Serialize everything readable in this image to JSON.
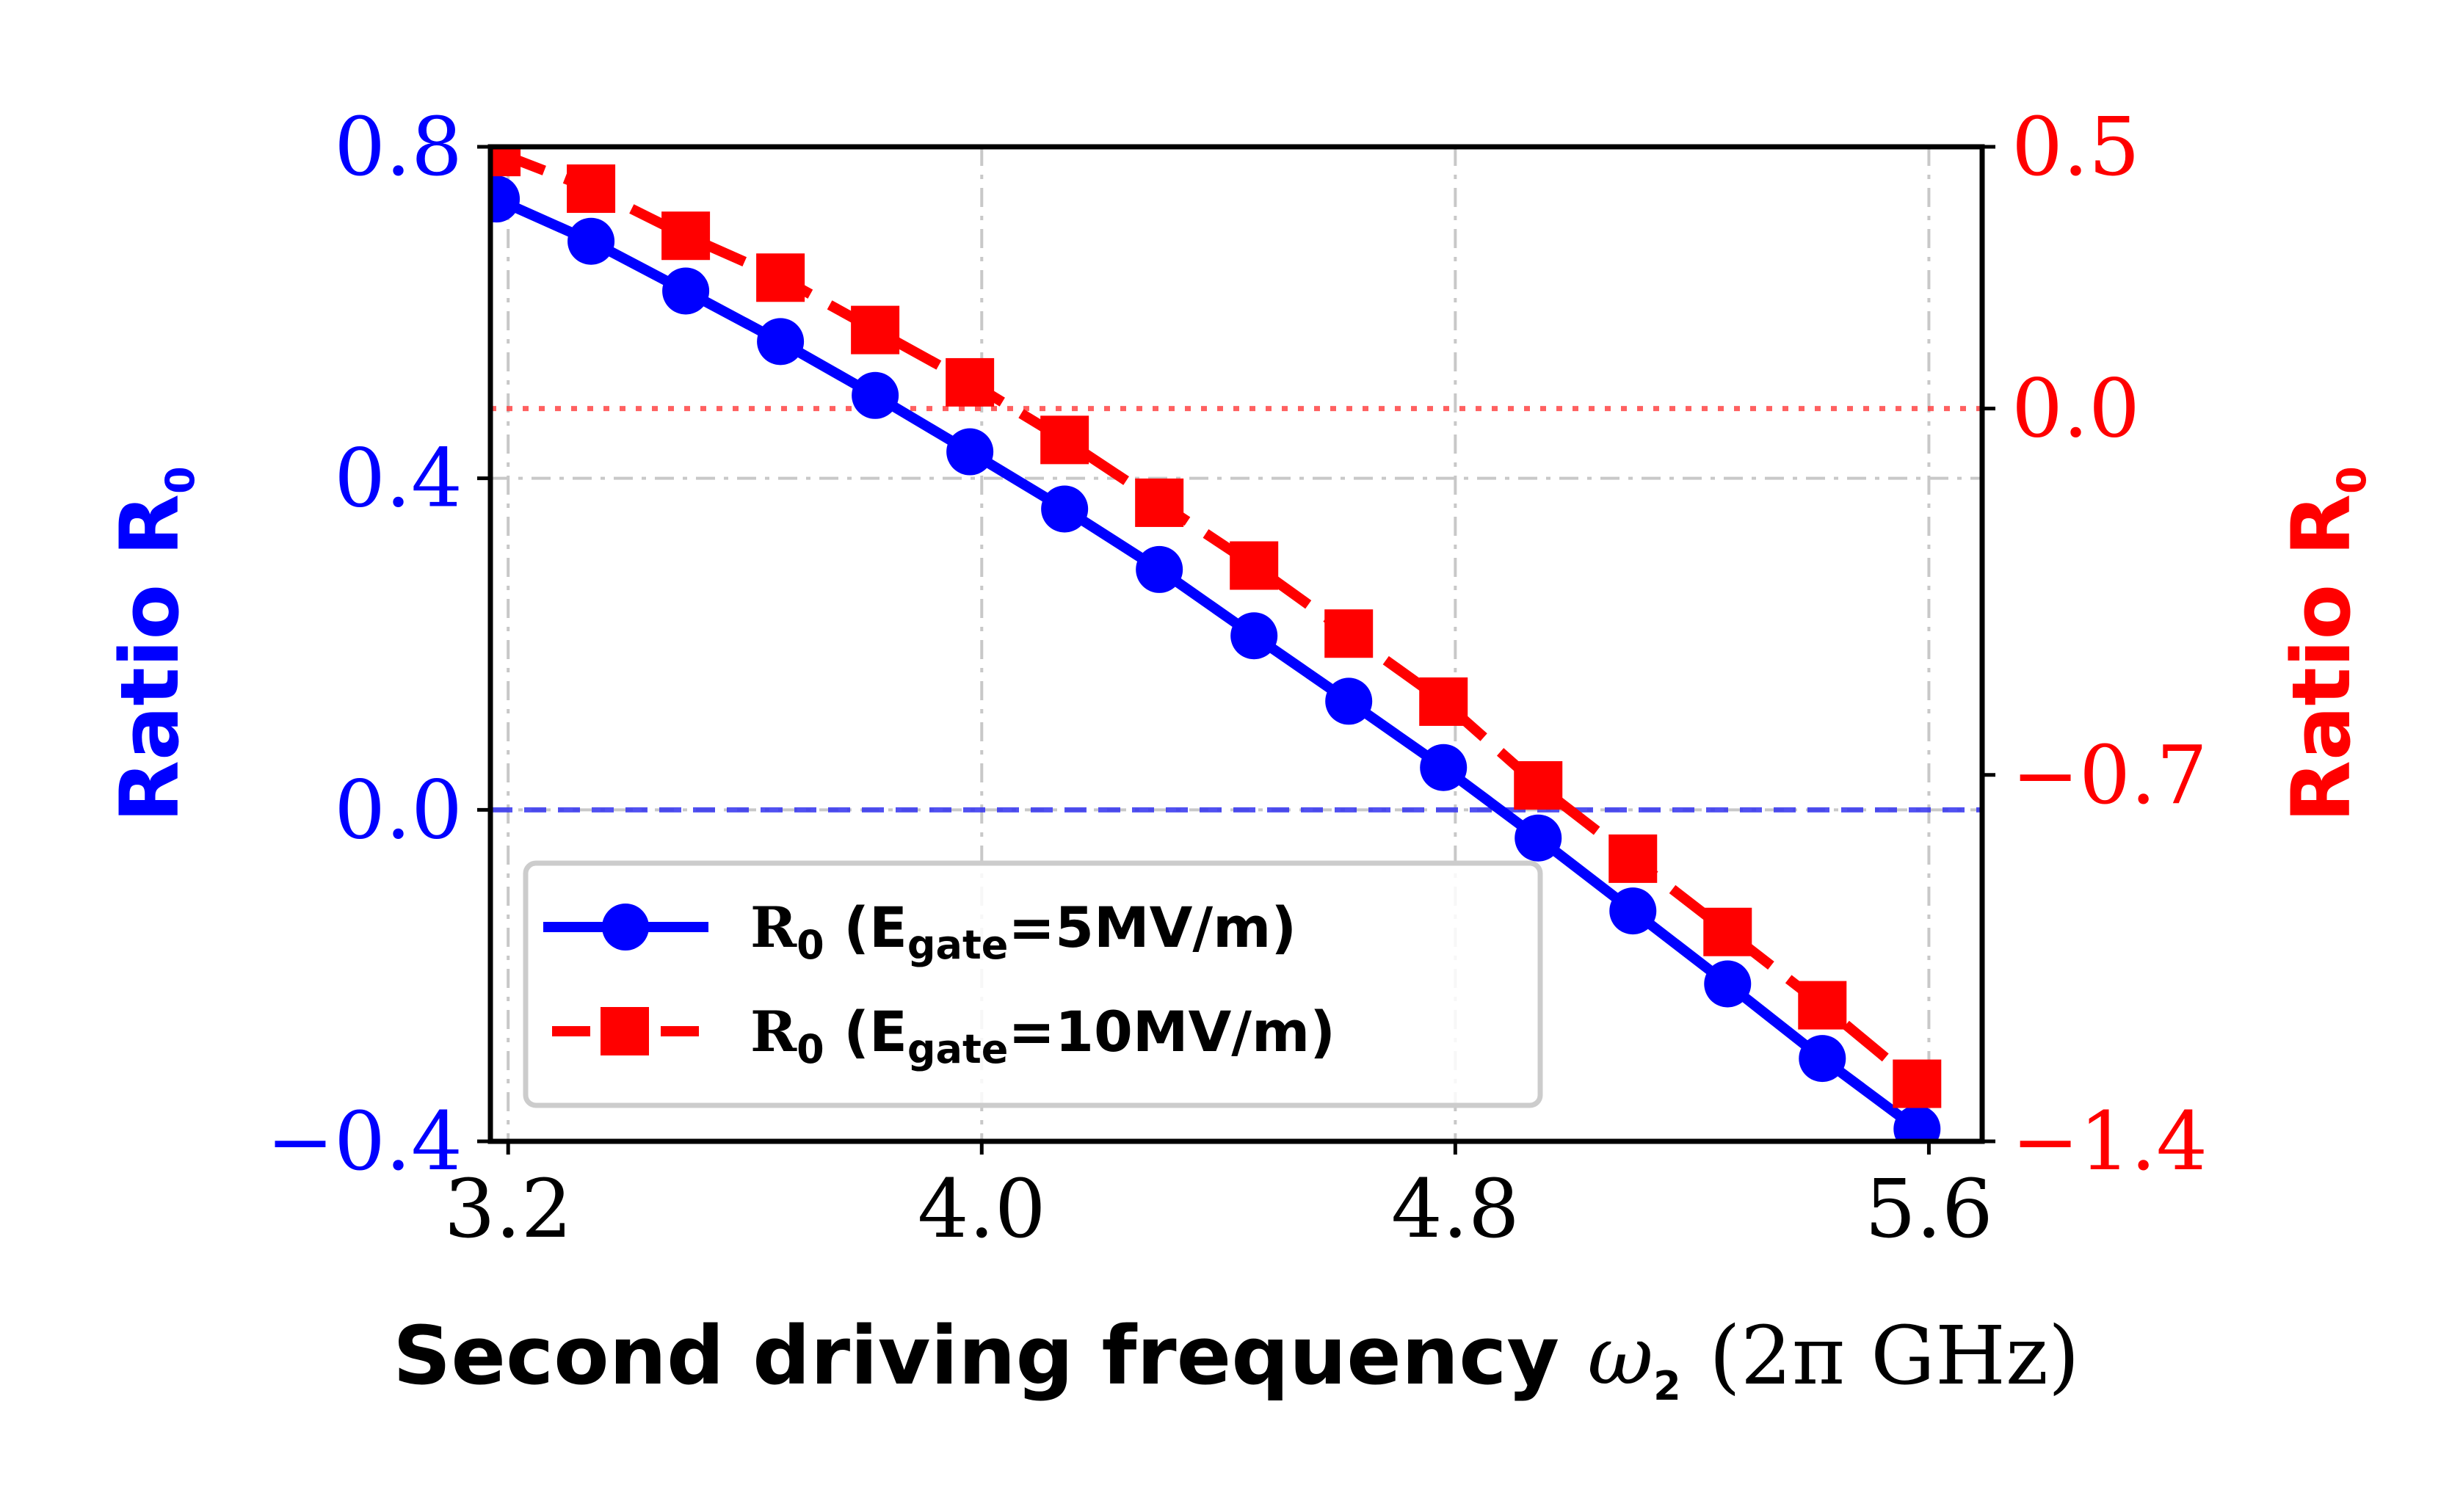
{
  "chart_data": {
    "type": "line",
    "x_label_text": "Second driving frequency",
    "x_label_symbol": "ω",
    "x_label_subscript": "2",
    "x_label_unit": "(2π GHz)",
    "x_lim": [
      3.17,
      5.69
    ],
    "x_ticks": [
      3.2,
      4.0,
      4.8,
      5.6
    ],
    "x_tick_labels": [
      "3.2",
      "4.0",
      "4.8",
      "5.6"
    ],
    "left_axis": {
      "label": "Ratio R",
      "label_subscript": "0",
      "color": "#0000ff",
      "lim": [
        -0.4,
        0.8
      ],
      "ticks": [
        -0.4,
        0.0,
        0.4,
        0.8
      ],
      "tick_labels": [
        "−0.4",
        "0.0",
        "0.4",
        "0.8"
      ]
    },
    "right_axis": {
      "label": "Ratio R",
      "label_subscript": "0",
      "color": "#ff0000",
      "lim": [
        -1.4,
        0.5
      ],
      "ticks": [
        -1.4,
        -0.7,
        0.0,
        0.5
      ],
      "tick_labels": [
        "−1.4",
        "−0.7",
        "0.0",
        "0.5"
      ]
    },
    "reference_lines": [
      {
        "axis": "left",
        "y": 0.0,
        "style": "dashed",
        "color": "#3333ee"
      },
      {
        "axis": "right",
        "y": 0.0,
        "style": "dotted",
        "color": "#ff4444"
      }
    ],
    "series": [
      {
        "name": "R0 (Egate=5MV/m)",
        "legend_main": "R",
        "legend_sub": "0",
        "legend_paren": "(E",
        "legend_sub2": "gate",
        "legend_tail": "=5MV/m)",
        "axis": "left",
        "color": "#0000ff",
        "marker": "circle",
        "line": "solid",
        "x": [
          3.18,
          3.34,
          3.5,
          3.66,
          3.82,
          3.98,
          4.14,
          4.3,
          4.46,
          4.62,
          4.78,
          4.94,
          5.1,
          5.26,
          5.42,
          5.58
        ],
        "y": [
          0.737,
          0.686,
          0.626,
          0.565,
          0.5,
          0.432,
          0.363,
          0.29,
          0.21,
          0.131,
          0.051,
          -0.034,
          -0.122,
          -0.21,
          -0.3,
          -0.385
        ]
      },
      {
        "name": "R0 (Egate=10MV/m)",
        "legend_main": "R",
        "legend_sub": "0",
        "legend_paren": "(E",
        "legend_sub2": "gate",
        "legend_tail": "=10MV/m)",
        "axis": "right",
        "color": "#ff0000",
        "marker": "square",
        "line": "dashed",
        "x": [
          3.18,
          3.34,
          3.5,
          3.66,
          3.82,
          3.98,
          4.14,
          4.3,
          4.46,
          4.62,
          4.78,
          4.94,
          5.1,
          5.26,
          5.42,
          5.58
        ],
        "y": [
          0.49,
          0.42,
          0.33,
          0.25,
          0.15,
          0.05,
          -0.06,
          -0.18,
          -0.3,
          -0.43,
          -0.56,
          -0.72,
          -0.86,
          -1.0,
          -1.14,
          -1.29
        ]
      }
    ],
    "grid": true,
    "legend_position": "lower-left"
  }
}
